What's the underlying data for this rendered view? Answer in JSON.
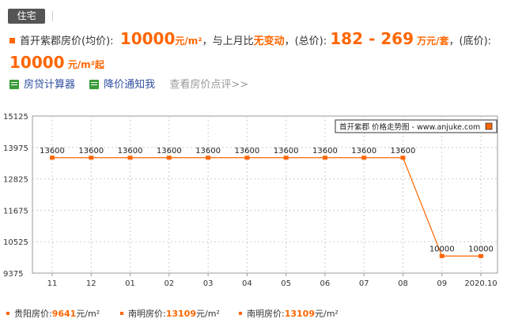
{
  "header": {
    "tag": "住宅",
    "community": "首开紫郡",
    "avg_label": "房价(均价):",
    "avg_price": "10000",
    "avg_unit": "元/m²",
    "compare_text": "，与上月比",
    "change": "无变动",
    "total_label": "，(总价):",
    "total_range": "182 - 269",
    "total_unit": "万元/套",
    "base_label": "，(底价):",
    "base_price": "10000",
    "base_unit": "元/m²起"
  },
  "links": {
    "calc": "房贷计算器",
    "notify": "降价通知我",
    "reviews": "查看房价点评>>"
  },
  "chart_data": {
    "type": "line",
    "legend": "首开紫郡 价格走势图 - www.anjuke.com",
    "categories": [
      "11",
      "12",
      "01",
      "02",
      "03",
      "04",
      "05",
      "06",
      "07",
      "08",
      "09",
      "2020.10"
    ],
    "values": [
      13600,
      13600,
      13600,
      13600,
      13600,
      13600,
      13600,
      13600,
      13600,
      13600,
      10000,
      10000
    ],
    "yticks": [
      "15125",
      "13975",
      "12825",
      "11675",
      "10525",
      "9375"
    ],
    "ylim": [
      9375,
      15125
    ],
    "grid": true,
    "color": "#ff6600"
  },
  "footer": [
    {
      "label": "贵阳房价:",
      "value": "9641",
      "unit": "元/m²"
    },
    {
      "label": "南明房价:",
      "value": "13109",
      "unit": "元/m²"
    },
    {
      "label": "南明房价:",
      "value": "13109",
      "unit": "元/m²"
    }
  ]
}
